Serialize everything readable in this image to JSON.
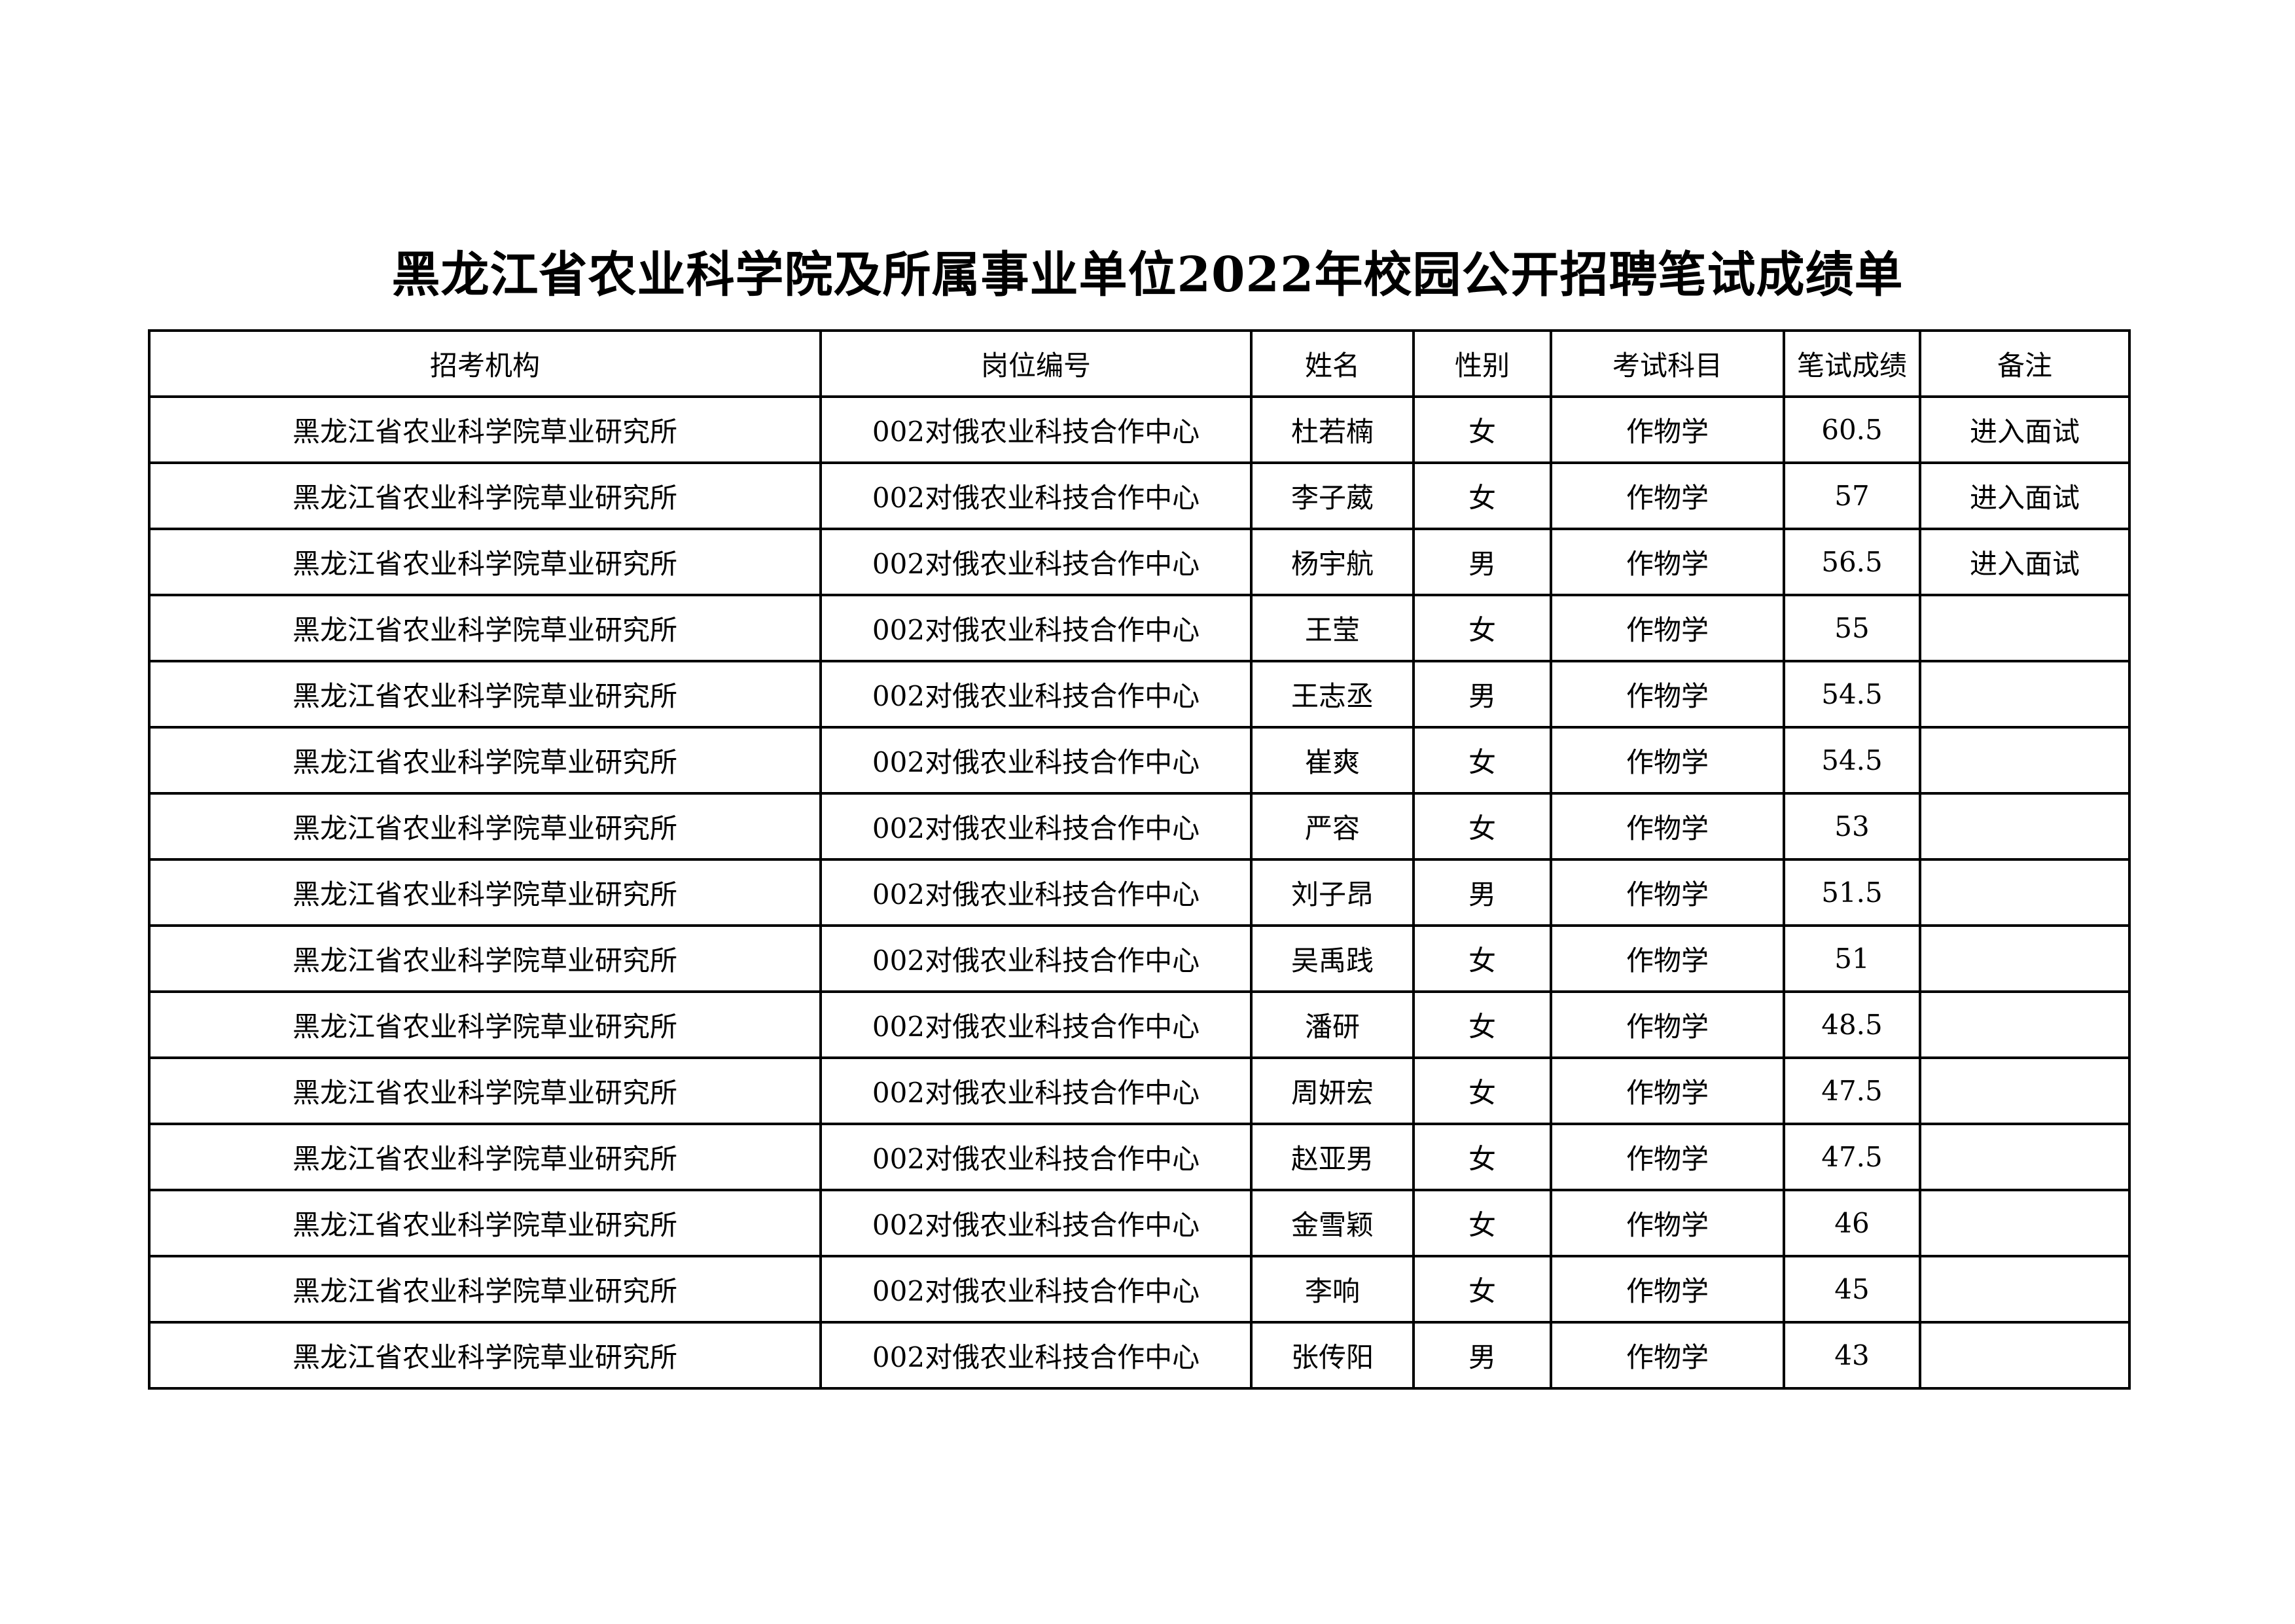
{
  "title": "黑龙江省农业科学院及所属事业单位2022年校园公开招聘笔试成绩单",
  "table": {
    "headers": [
      "招考机构",
      "岗位编号",
      "姓名",
      "性别",
      "考试科目",
      "笔试成绩",
      "备注"
    ],
    "rows": [
      [
        "黑龙江省农业科学院草业研究所",
        "002对俄农业科技合作中心",
        "杜若楠",
        "女",
        "作物学",
        "60.5",
        "进入面试"
      ],
      [
        "黑龙江省农业科学院草业研究所",
        "002对俄农业科技合作中心",
        "李子葳",
        "女",
        "作物学",
        "57",
        "进入面试"
      ],
      [
        "黑龙江省农业科学院草业研究所",
        "002对俄农业科技合作中心",
        "杨宇航",
        "男",
        "作物学",
        "56.5",
        "进入面试"
      ],
      [
        "黑龙江省农业科学院草业研究所",
        "002对俄农业科技合作中心",
        "王莹",
        "女",
        "作物学",
        "55",
        ""
      ],
      [
        "黑龙江省农业科学院草业研究所",
        "002对俄农业科技合作中心",
        "王志丞",
        "男",
        "作物学",
        "54.5",
        ""
      ],
      [
        "黑龙江省农业科学院草业研究所",
        "002对俄农业科技合作中心",
        "崔爽",
        "女",
        "作物学",
        "54.5",
        ""
      ],
      [
        "黑龙江省农业科学院草业研究所",
        "002对俄农业科技合作中心",
        "严容",
        "女",
        "作物学",
        "53",
        ""
      ],
      [
        "黑龙江省农业科学院草业研究所",
        "002对俄农业科技合作中心",
        "刘子昂",
        "男",
        "作物学",
        "51.5",
        ""
      ],
      [
        "黑龙江省农业科学院草业研究所",
        "002对俄农业科技合作中心",
        "吴禹践",
        "女",
        "作物学",
        "51",
        ""
      ],
      [
        "黑龙江省农业科学院草业研究所",
        "002对俄农业科技合作中心",
        "潘研",
        "女",
        "作物学",
        "48.5",
        ""
      ],
      [
        "黑龙江省农业科学院草业研究所",
        "002对俄农业科技合作中心",
        "周妍宏",
        "女",
        "作物学",
        "47.5",
        ""
      ],
      [
        "黑龙江省农业科学院草业研究所",
        "002对俄农业科技合作中心",
        "赵亚男",
        "女",
        "作物学",
        "47.5",
        ""
      ],
      [
        "黑龙江省农业科学院草业研究所",
        "002对俄农业科技合作中心",
        "金雪颖",
        "女",
        "作物学",
        "46",
        ""
      ],
      [
        "黑龙江省农业科学院草业研究所",
        "002对俄农业科技合作中心",
        "李响",
        "女",
        "作物学",
        "45",
        ""
      ],
      [
        "黑龙江省农业科学院草业研究所",
        "002对俄农业科技合作中心",
        "张传阳",
        "男",
        "作物学",
        "43",
        ""
      ]
    ]
  }
}
